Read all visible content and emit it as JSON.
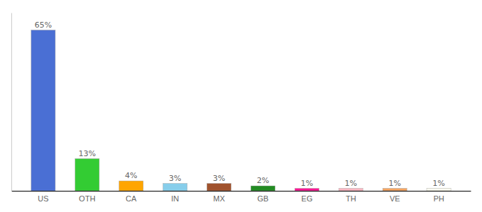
{
  "chart_data": {
    "type": "bar",
    "categories": [
      "US",
      "OTH",
      "CA",
      "IN",
      "MX",
      "GB",
      "EG",
      "TH",
      "VE",
      "PH"
    ],
    "values": [
      65,
      13,
      4,
      3,
      3,
      2,
      1,
      1,
      1,
      1
    ],
    "value_labels": [
      "65%",
      "13%",
      "4%",
      "3%",
      "3%",
      "2%",
      "1%",
      "1%",
      "1%",
      "1%"
    ],
    "colors": [
      "#4A6FD4",
      "#33CC33",
      "#FFA500",
      "#87CEEB",
      "#A0522D",
      "#228B22",
      "#FF1493",
      "#FFB6C1",
      "#F4A460",
      "#FFFFF0"
    ],
    "ylim": [
      0,
      72
    ],
    "data_labels": true,
    "tick_labels": "x",
    "grid": false
  }
}
